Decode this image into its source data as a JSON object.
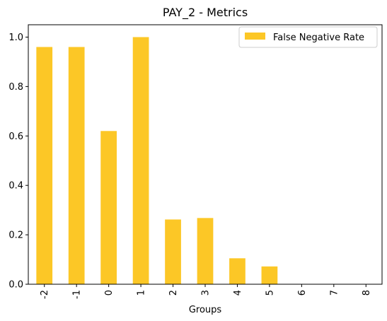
{
  "chart_data": {
    "type": "bar",
    "title": "PAY_2 - Metrics",
    "xlabel": "Groups",
    "ylabel": "",
    "categories": [
      "-2",
      "-1",
      "0",
      "1",
      "2",
      "3",
      "4",
      "5",
      "6",
      "7",
      "8"
    ],
    "series": [
      {
        "name": "False Negative Rate",
        "values": [
          0.96,
          0.96,
          0.62,
          1.0,
          0.262,
          0.268,
          0.105,
          0.072,
          0,
          0,
          0
        ]
      }
    ],
    "ylim": [
      0,
      1.05
    ],
    "yticks": [
      0.0,
      0.2,
      0.4,
      0.6,
      0.8,
      1.0
    ],
    "ytick_labels": [
      "0.0",
      "0.2",
      "0.4",
      "0.6",
      "0.8",
      "1.0"
    ],
    "grid": false,
    "legend_position": "top-right",
    "colors": {
      "bar": "#FCC726",
      "axis": "#000000",
      "legend_edge": "#cccccc"
    }
  }
}
